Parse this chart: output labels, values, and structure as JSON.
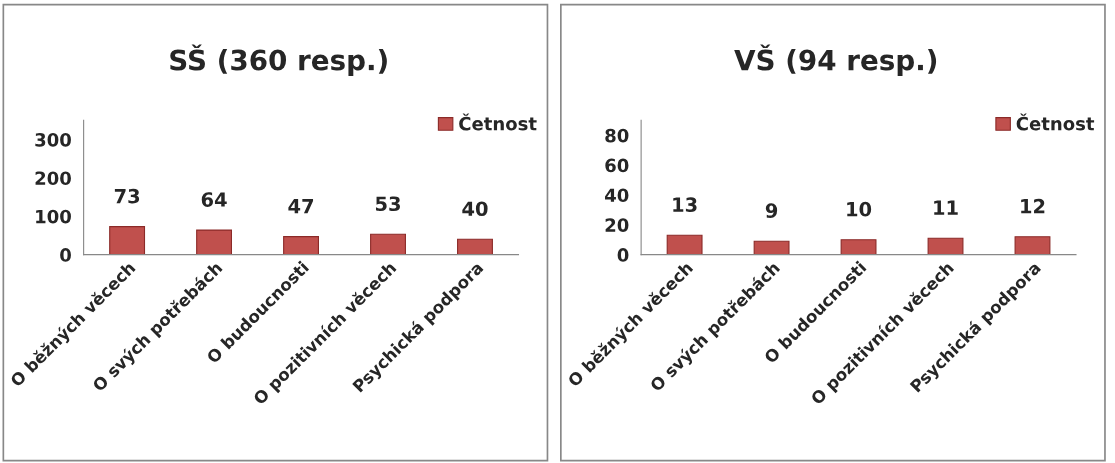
{
  "chart_data": [
    {
      "type": "bar",
      "title": "SŠ (360 resp.)",
      "categories": [
        "O běžných věcech",
        "O svých potřebách",
        "O budoucnosti",
        "O pozitivních věcech",
        "Psychická podpora"
      ],
      "series": [
        {
          "name": "Četnost",
          "color": "#c0504d",
          "values": [
            73,
            64,
            47,
            53,
            40
          ]
        }
      ],
      "ylim": [
        0,
        350
      ],
      "yticks": [
        0,
        100,
        200,
        300
      ],
      "data_labels": true,
      "legend": "top right",
      "grid": false
    },
    {
      "type": "bar",
      "title": "VŠ (94 resp.)",
      "categories": [
        "O běžných věcech",
        "O svých potřebách",
        "O budoucnosti",
        "O pozitivních věcech",
        "Psychická podpora"
      ],
      "series": [
        {
          "name": "Četnost",
          "color": "#c0504d",
          "values": [
            13,
            9,
            10,
            11,
            12
          ]
        }
      ],
      "ylim": [
        0,
        90
      ],
      "yticks": [
        0,
        20,
        40,
        60,
        80
      ],
      "data_labels": true,
      "legend": "top right",
      "grid": false
    }
  ]
}
